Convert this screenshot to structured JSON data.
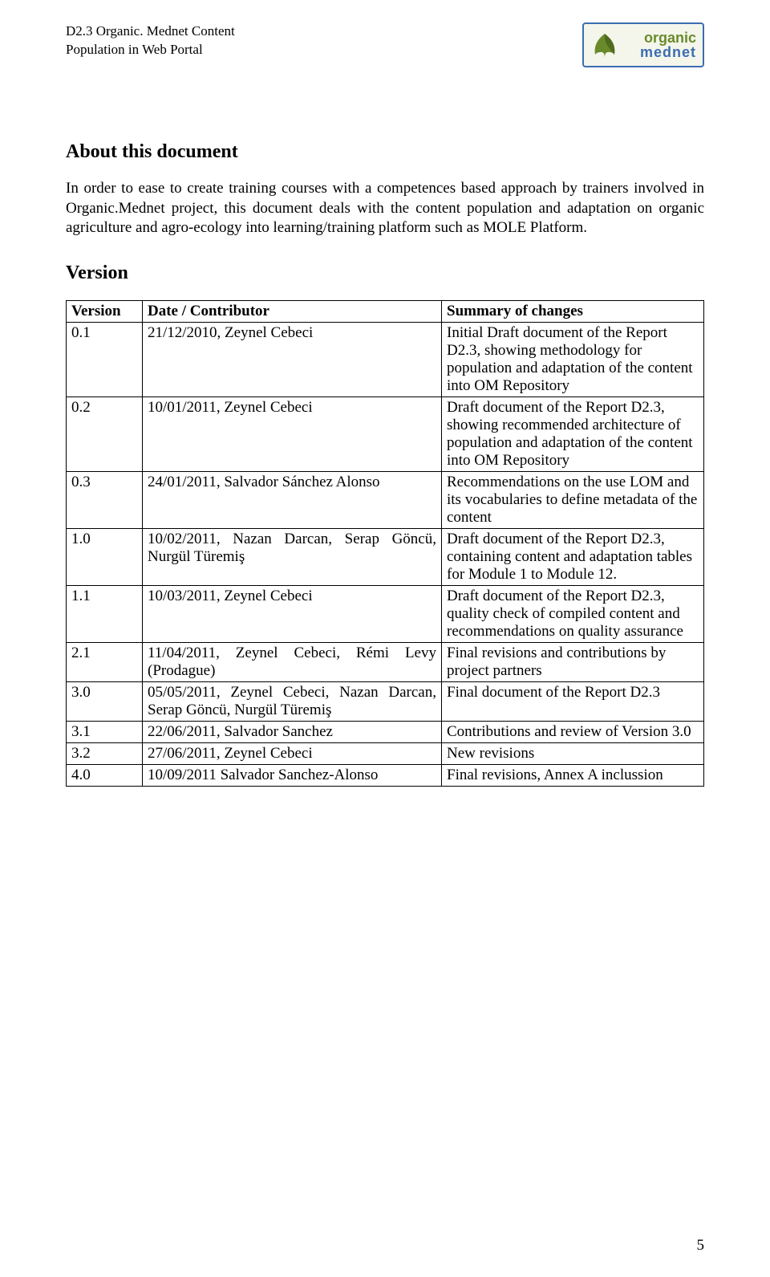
{
  "header": {
    "line1": "D2.3 Organic. Mednet Content",
    "line2": "Population in Web Portal",
    "logo_line1": "organic",
    "logo_line2": "mednet"
  },
  "about": {
    "title": "About this document",
    "paragraph": "In order to ease to create training courses with  a competences based approach by trainers involved in Organic.Mednet project, this document deals with the content population and adaptation on organic agriculture and agro-ecology into learning/training platform such as MOLE Platform."
  },
  "version_section_title": "Version",
  "columns": {
    "version": "Version",
    "date": "Date / Contributor",
    "summary": "Summary of changes"
  },
  "rows": [
    {
      "version": "0.1",
      "date": "21/12/2010, Zeynel Cebeci",
      "summary": "Initial Draft document of the Report D2.3, showing methodology for population and adaptation of the content into OM Repository"
    },
    {
      "version": "0.2",
      "date": "10/01/2011, Zeynel Cebeci",
      "summary": "Draft document of the Report D2.3, showing recommended architecture of population and adaptation of the content into OM Repository"
    },
    {
      "version": "0.3",
      "date": "24/01/2011, Salvador Sánchez Alonso",
      "summary": "Recommendations on the use LOM and its vocabularies to define metadata of the content"
    },
    {
      "version": "1.0",
      "date": "10/02/2011, Nazan Darcan, Serap Göncü, Nurgül Türemiş",
      "summary": "Draft document of the Report D2.3, containing content and adaptation tables for Module 1 to Module 12."
    },
    {
      "version": "1.1",
      "date": "10/03/2011, Zeynel Cebeci",
      "summary": "Draft document of the Report D2.3, quality check of compiled content and recommendations on quality assurance"
    },
    {
      "version": "2.1",
      "date": "11/04/2011, Zeynel Cebeci, Rémi Levy (Prodague)",
      "summary": "Final revisions and contributions by project partners"
    },
    {
      "version": "3.0",
      "date": "05/05/2011, Zeynel Cebeci, Nazan Darcan, Serap Göncü, Nurgül Türemiş",
      "summary": "Final document of the Report D2.3"
    },
    {
      "version": "3.1",
      "date": "22/06/2011, Salvador Sanchez",
      "summary": "Contributions and review of Version 3.0"
    },
    {
      "version": "3.2",
      "date": "27/06/2011, Zeynel Cebeci",
      "summary": "New revisions"
    },
    {
      "version": "4.0",
      "date": "10/09/2011 Salvador Sanchez-Alonso",
      "summary": "Final revisions, Annex A inclussion"
    }
  ],
  "page_number": "5",
  "colors": {
    "logo_border": "#3c6db0",
    "logo_bg": "#f4f6ec",
    "logo_green": "#6a8a2a",
    "logo_blue": "#3c6db0",
    "leaf_fill": "#6a8a2a",
    "leaf_dark": "#4f6a1f"
  }
}
